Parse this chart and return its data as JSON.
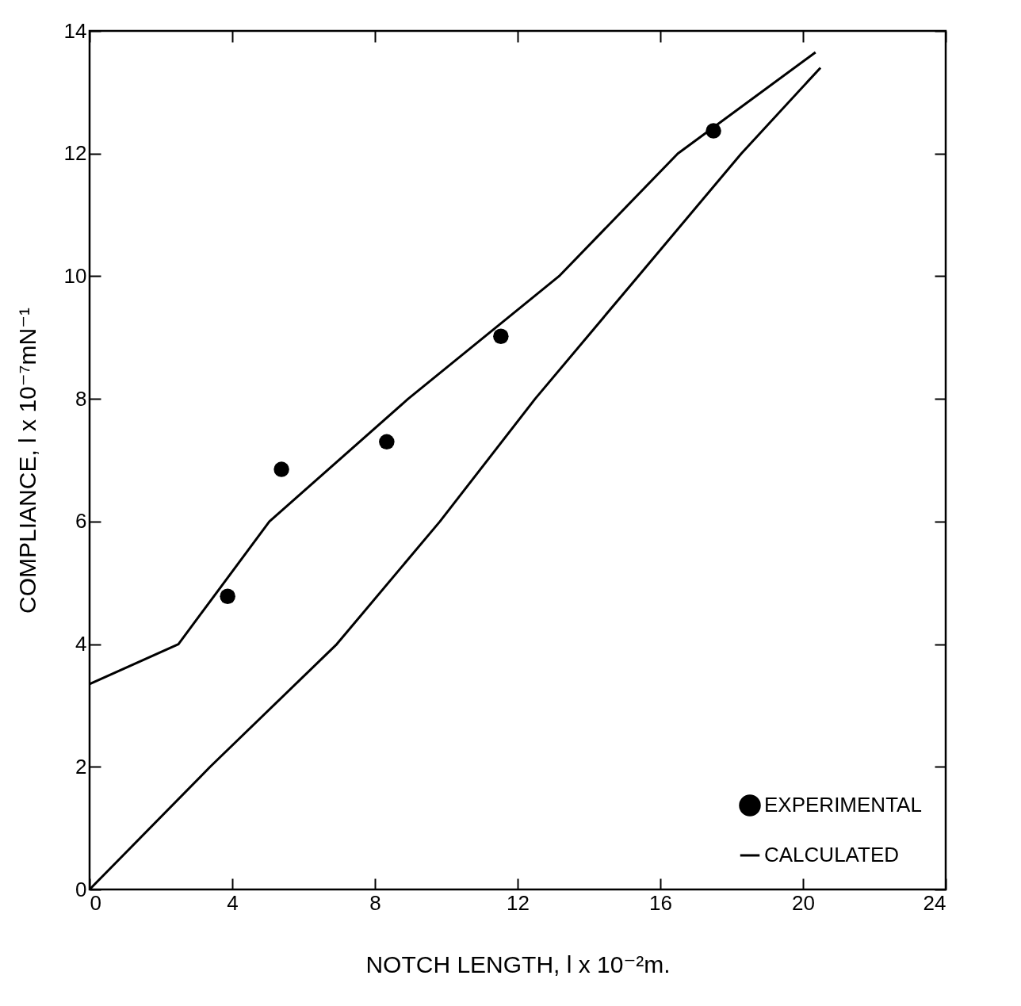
{
  "chart_data": {
    "type": "scatter",
    "xlabel": "NOTCH LENGTH, l x 10⁻²m.",
    "ylabel": "COMPLIANCE, l x 10⁻⁷mN⁻¹",
    "series": [
      {
        "name": "EXPERIMENTAL",
        "marker": "circle",
        "color": "#000000",
        "x": [
          3.87,
          5.38,
          8.33,
          11.53,
          17.49
        ],
        "values": [
          4.78,
          6.85,
          7.3,
          9.02,
          12.37
        ]
      },
      {
        "type": "line",
        "color": "#000000",
        "x": [
          0,
          2.49,
          5.04,
          8.93,
          13.16,
          16.49,
          20.35
        ],
        "values": [
          3.35,
          4,
          6,
          8,
          10,
          12,
          13.65
        ]
      },
      {
        "name": "CALCULATED",
        "type": "line",
        "color": "#000000",
        "x": [
          0,
          3.38,
          6.93,
          9.82,
          12.49,
          15.38,
          18.27,
          20.49
        ],
        "values": [
          0,
          2,
          4,
          6,
          8,
          10,
          12,
          13.4
        ]
      }
    ],
    "xlim": [
      0,
      24
    ],
    "xticks": [
      0,
      4,
      8,
      12,
      16,
      20,
      24
    ],
    "ylim": [
      0,
      14
    ],
    "yticks": [
      0,
      2,
      4,
      6,
      8,
      10,
      12,
      14
    ],
    "grid": false,
    "legend": "bottom right",
    "line_style": "solid"
  }
}
